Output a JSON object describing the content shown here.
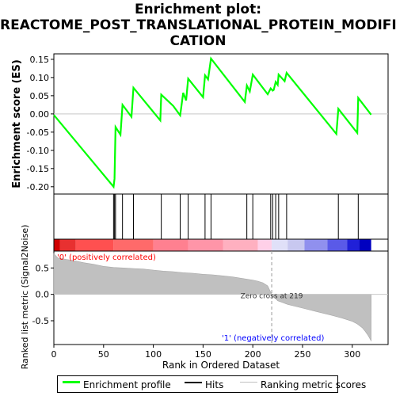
{
  "title_line1": "Enrichment plot:",
  "title_line2": "REACTOME_POST_TRANSLATIONAL_PROTEIN_MODIFI",
  "title_line3": "CATION",
  "chart_data": {
    "type": "line",
    "es_panel": {
      "ylabel": "Enrichment score (ES)",
      "ylim": [
        -0.22,
        0.165
      ],
      "yticks": [
        "-0.20",
        "-0.15",
        "-0.10",
        "-0.05",
        "0.00",
        "0.05",
        "0.10",
        "0.15"
      ],
      "ytick_values": [
        -0.2,
        -0.15,
        -0.1,
        -0.05,
        0.0,
        0.05,
        0.1,
        0.15
      ],
      "series": [
        {
          "name": "Enrichment profile",
          "color": "#00ff00",
          "x": [
            0,
            60,
            61,
            62,
            67,
            69,
            78,
            80,
            107,
            108,
            120,
            127,
            130,
            133,
            135,
            150,
            152,
            155,
            158,
            192,
            194,
            197,
            200,
            215,
            218,
            220,
            221,
            223,
            225,
            226,
            232,
            234,
            284,
            286,
            305,
            306,
            319
          ],
          "y": [
            -0.003,
            -0.2,
            -0.178,
            -0.036,
            -0.057,
            0.025,
            -0.008,
            0.072,
            -0.018,
            0.053,
            0.022,
            -0.004,
            0.058,
            0.037,
            0.097,
            0.046,
            0.106,
            0.095,
            0.152,
            0.033,
            0.078,
            0.062,
            0.108,
            0.054,
            0.07,
            0.064,
            0.066,
            0.088,
            0.08,
            0.108,
            0.09,
            0.113,
            -0.055,
            0.014,
            -0.052,
            0.044,
            -0.002
          ]
        }
      ]
    },
    "hits": [
      60,
      61,
      62,
      69,
      80,
      108,
      127,
      135,
      152,
      158,
      194,
      200,
      218,
      220,
      223,
      226,
      234,
      286,
      306
    ],
    "rank_panel": {
      "ylabel": "Ranked list metric (Signal2Noise)",
      "xlabel": "Rank in Ordered Dataset",
      "xlim": [
        0,
        336
      ],
      "xticks": [
        "0",
        "50",
        "100",
        "150",
        "200",
        "250",
        "300"
      ],
      "xtick_values": [
        0,
        50,
        100,
        150,
        200,
        250,
        300
      ],
      "ylim": [
        -0.95,
        0.82
      ],
      "yticks": [
        "-0.5",
        "0.0",
        "0.5"
      ],
      "ytick_values": [
        -0.5,
        0.0,
        0.5
      ],
      "metric_profile": {
        "x": [
          0,
          4,
          10,
          20,
          30,
          40,
          50,
          60,
          70,
          80,
          90,
          100,
          110,
          120,
          130,
          140,
          150,
          160,
          170,
          180,
          190,
          200,
          205,
          210,
          215,
          219,
          225,
          235,
          250,
          265,
          280,
          290,
          300,
          305,
          310,
          313,
          316,
          319
        ],
        "y": [
          0.77,
          0.69,
          0.67,
          0.64,
          0.6,
          0.57,
          0.53,
          0.51,
          0.5,
          0.49,
          0.48,
          0.46,
          0.44,
          0.43,
          0.41,
          0.4,
          0.38,
          0.37,
          0.35,
          0.33,
          0.3,
          0.27,
          0.25,
          0.22,
          0.16,
          0.0,
          -0.12,
          -0.19,
          -0.26,
          -0.33,
          -0.4,
          -0.45,
          -0.51,
          -0.56,
          -0.63,
          -0.7,
          -0.78,
          -0.88
        ]
      },
      "zero_cross_rank": 219,
      "zero_cross_label": "Zero cross at 219",
      "pos_label": "'0' (positively correlated)",
      "neg_label": "'1' (negatively correlated)",
      "pos_color": "#ff0000",
      "neg_color": "#0000ff"
    },
    "legend": [
      {
        "label": "Enrichment profile",
        "color": "#00ff00"
      },
      {
        "label": "Hits",
        "color": "#000000"
      },
      {
        "label": "Ranking metric scores",
        "color": "#c0c0c0"
      }
    ],
    "legend_placement": "bottom"
  }
}
